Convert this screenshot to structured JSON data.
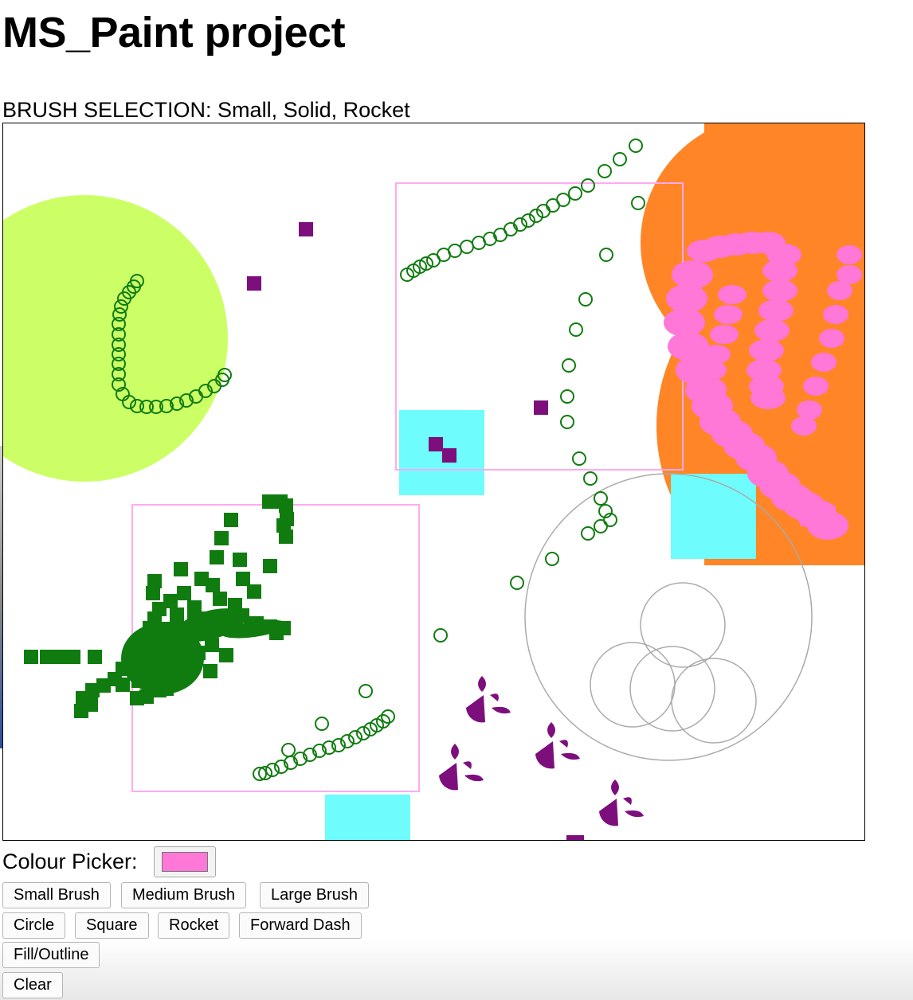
{
  "page": {
    "title": "MS_Paint project",
    "brush_selection": "BRUSH SELECTION: Small, Solid, Rocket"
  },
  "colour_picker": {
    "label": "Colour Picker:",
    "value": "#ff77d7"
  },
  "buttons": {
    "small_brush": "Small Brush",
    "medium_brush": "Medium Brush",
    "large_brush": "Large Brush",
    "circle": "Circle",
    "square": "Square",
    "rocket": "Rocket",
    "forward_dash": "Forward Dash",
    "fill_outline": "Fill/Outline",
    "clear": "Clear"
  },
  "colors": {
    "lime": "#ccff66",
    "orange": "#ff8526",
    "pink": "#ff77d7",
    "green": "#107c10",
    "purple": "#7d0f7d",
    "cyan": "#6ffcfc",
    "grey": "#aaaaaa"
  }
}
